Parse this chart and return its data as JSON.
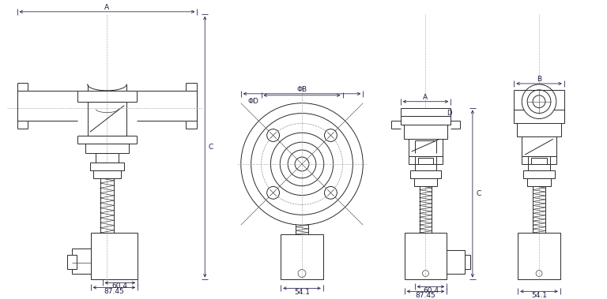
{
  "bg_color": "#ffffff",
  "lc": "#2a2a2a",
  "dc": "#1a1a44",
  "dlw": 0.55,
  "lw": 0.7,
  "thin": 0.45,
  "labels": {
    "87_45": "87.45",
    "60_4": "60.4",
    "54_1": "54.1",
    "A": "A",
    "B": "B",
    "C": "C",
    "D": "D",
    "phiB": "ΦB",
    "phiD": "ΦD"
  }
}
